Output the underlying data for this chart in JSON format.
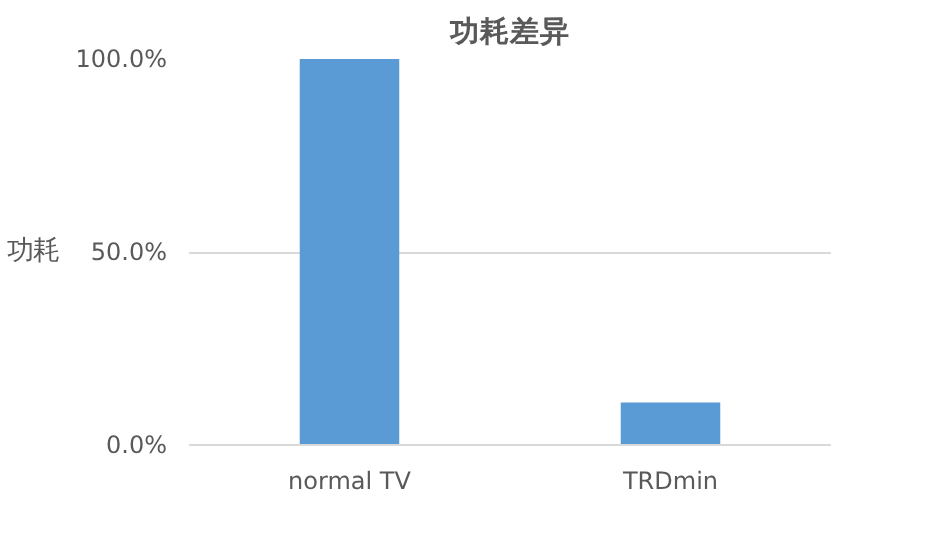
{
  "chart_data": {
    "type": "bar",
    "title": "功耗差异",
    "ylabel": "功耗",
    "categories": [
      "normal TV",
      "TRDmin"
    ],
    "values": [
      100,
      11
    ],
    "color": "#5b9bd5",
    "ylim": [
      0,
      100
    ],
    "yticks": [
      {
        "value": 0,
        "label": "0.0%"
      },
      {
        "value": 50,
        "label": "50.0%"
      },
      {
        "value": 100,
        "label": "100.0%"
      }
    ],
    "grid": "y"
  }
}
